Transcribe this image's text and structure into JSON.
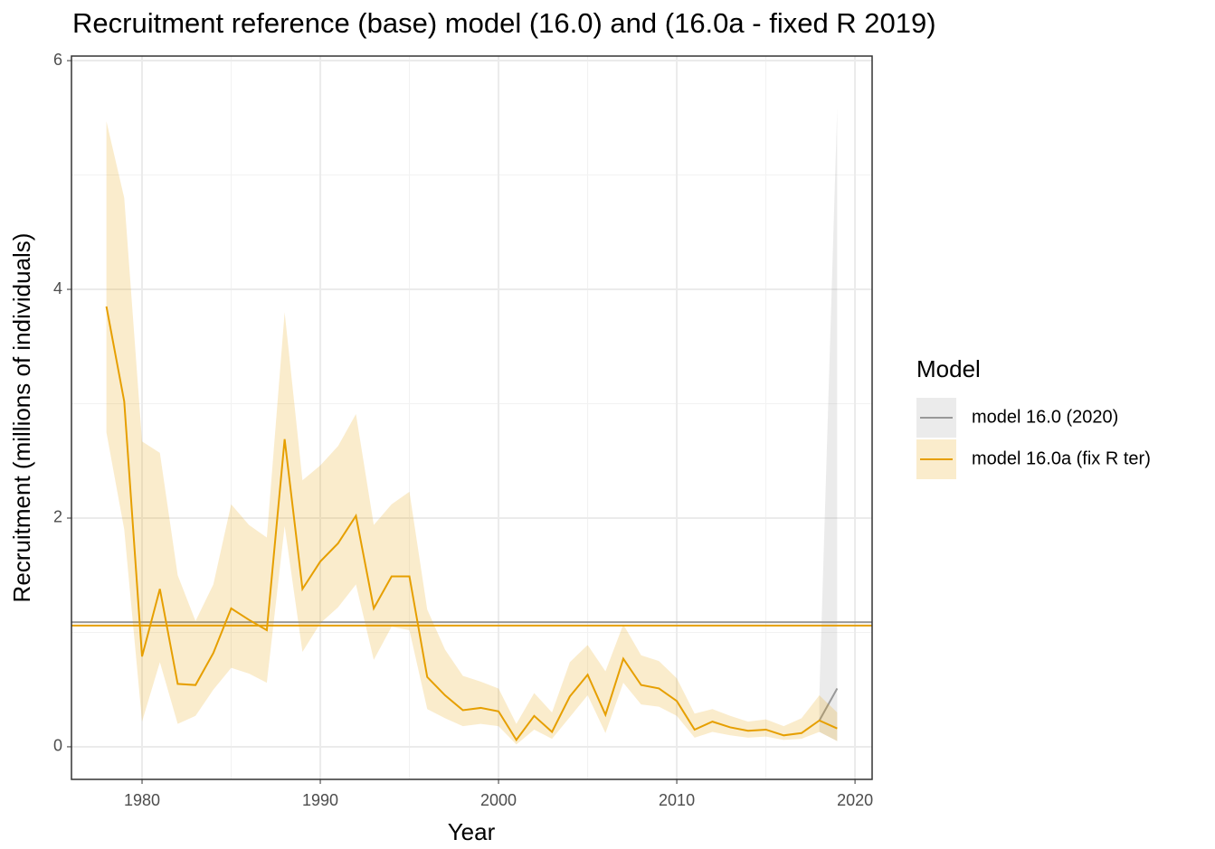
{
  "chart_data": {
    "type": "line",
    "title": "Recruitment reference (base) model (16.0) and (16.0a - fixed R 2019)",
    "x_label": "Year",
    "y_label": "Recruitment (millions of individuals)",
    "legend_title": "Model",
    "xlim": [
      1976.04,
      2020.96
    ],
    "ylim": [
      -0.285,
      6.04
    ],
    "xticks": [
      1980,
      1990,
      2000,
      2010,
      2020
    ],
    "yticks": [
      0,
      2,
      4,
      6
    ],
    "grid": true,
    "series": [
      {
        "name": "model 16.0 (2020)",
        "color": "#999999",
        "x": [
          2018,
          2019
        ],
        "values": [
          0.23,
          0.51
        ],
        "lower": [
          0.13,
          0.05
        ],
        "upper": [
          0.45,
          5.58
        ],
        "hline": 1.09
      },
      {
        "name": "model 16.0a (fix R ter)",
        "color": "#E69F00",
        "x": [
          1978,
          1979,
          1980,
          1981,
          1982,
          1983,
          1984,
          1985,
          1986,
          1987,
          1988,
          1989,
          1990,
          1991,
          1992,
          1993,
          1994,
          1995,
          1996,
          1997,
          1998,
          1999,
          2000,
          2001,
          2002,
          2003,
          2004,
          2005,
          2006,
          2007,
          2008,
          2009,
          2010,
          2011,
          2012,
          2013,
          2014,
          2015,
          2016,
          2017,
          2018,
          2019
        ],
        "values": [
          3.85,
          3.02,
          0.79,
          1.38,
          0.55,
          0.54,
          0.82,
          1.21,
          1.11,
          1.02,
          2.69,
          1.38,
          1.62,
          1.78,
          2.02,
          1.21,
          1.49,
          1.49,
          0.61,
          0.45,
          0.32,
          0.34,
          0.31,
          0.06,
          0.27,
          0.13,
          0.44,
          0.63,
          0.28,
          0.77,
          0.54,
          0.51,
          0.4,
          0.15,
          0.22,
          0.17,
          0.14,
          0.15,
          0.1,
          0.12,
          0.23,
          0.16
        ],
        "lower": [
          2.75,
          1.9,
          0.22,
          0.74,
          0.2,
          0.27,
          0.5,
          0.69,
          0.64,
          0.56,
          1.93,
          0.83,
          1.08,
          1.22,
          1.42,
          0.76,
          1.05,
          1.02,
          0.33,
          0.25,
          0.18,
          0.2,
          0.18,
          0.02,
          0.15,
          0.07,
          0.26,
          0.45,
          0.12,
          0.56,
          0.37,
          0.35,
          0.27,
          0.08,
          0.13,
          0.1,
          0.08,
          0.09,
          0.06,
          0.07,
          0.13,
          0.05
        ],
        "upper": [
          5.47,
          4.8,
          2.67,
          2.57,
          1.5,
          1.1,
          1.42,
          2.12,
          1.94,
          1.83,
          3.8,
          2.33,
          2.46,
          2.63,
          2.91,
          1.94,
          2.12,
          2.23,
          1.2,
          0.85,
          0.62,
          0.57,
          0.51,
          0.2,
          0.47,
          0.3,
          0.74,
          0.89,
          0.66,
          1.07,
          0.8,
          0.75,
          0.6,
          0.29,
          0.33,
          0.27,
          0.22,
          0.24,
          0.18,
          0.25,
          0.45,
          0.3
        ],
        "hline": 1.06
      }
    ]
  }
}
